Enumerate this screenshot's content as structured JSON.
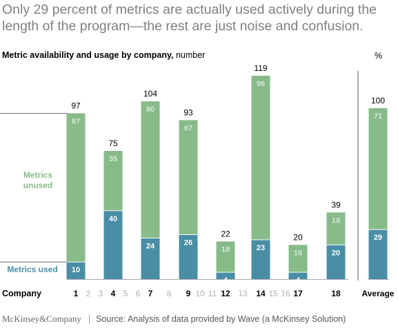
{
  "headline": "Only 29 percent of metrics are actually used actively during the length of the program—the rest are just noise and confusion.",
  "chart_data": {
    "type": "bar",
    "stacked": true,
    "title": "Metric availability and usage by company,",
    "title_unit": "number",
    "right_unit": "%",
    "xlabel": "Company",
    "categories": [
      "1",
      "2",
      "3",
      "4",
      "5",
      "6",
      "7",
      "8",
      "9",
      "10",
      "11",
      "12",
      "13",
      "14",
      "15",
      "16",
      "17",
      "18",
      "Average"
    ],
    "highlighted_categories": [
      "1",
      "4",
      "7",
      "9",
      "12",
      "14",
      "17",
      "18",
      "Average"
    ],
    "series": [
      {
        "name": "Metrics used",
        "color": "#4a8ea6",
        "values": [
          10,
          null,
          null,
          40,
          null,
          null,
          24,
          null,
          26,
          null,
          null,
          4,
          null,
          23,
          null,
          null,
          4,
          20,
          29
        ]
      },
      {
        "name": "Metrics unused",
        "color": "#87bb89",
        "values": [
          87,
          null,
          null,
          35,
          null,
          null,
          80,
          null,
          67,
          null,
          null,
          18,
          null,
          96,
          null,
          null,
          16,
          19,
          71
        ]
      }
    ],
    "totals": [
      97,
      null,
      null,
      75,
      null,
      null,
      104,
      null,
      93,
      null,
      null,
      22,
      null,
      119,
      null,
      null,
      20,
      39,
      100
    ],
    "legend_labels": {
      "used": "Metrics used",
      "unused_line1": "Metrics",
      "unused_line2": "unused"
    },
    "ylim": [
      0,
      119
    ]
  },
  "footer": {
    "brand": "McKinsey&Company",
    "source": "Source: Analysis of data provided by Wave (a McKinsey Solution)"
  }
}
